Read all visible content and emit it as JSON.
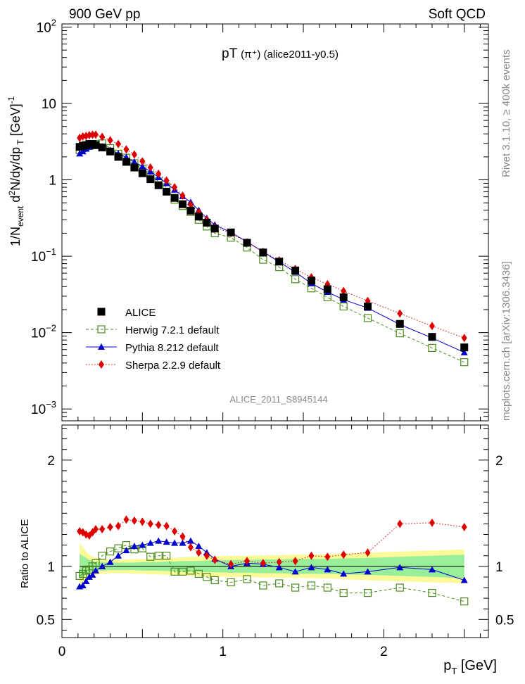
{
  "header": {
    "left": "900 GeV pp",
    "right": "Soft QCD"
  },
  "side": {
    "top": "Rivet 3.1.10, ≥ 400k events",
    "bottom": "mcplots.cern.ch [arXiv:1306.3436]"
  },
  "chart_data": [
    {
      "type": "scatter",
      "title_main": "pT",
      "title_sub": "(π⁺) (alice2011-y0.5)",
      "watermark": "ALICE_2011_S8945144",
      "ylabel": "1/N_event d²N/dy/dp_T [GeV]⁻¹",
      "yscale": "log",
      "ylim": [
        0.0007,
        110
      ],
      "xlim": [
        0,
        2.65
      ],
      "yticks": [
        {
          "v": 0.001,
          "b": "10",
          "e": "−3"
        },
        {
          "v": 0.01,
          "b": "10",
          "e": "−2"
        },
        {
          "v": 0.1,
          "b": "10",
          "e": "−1"
        },
        {
          "v": 1,
          "b": "1",
          "e": ""
        },
        {
          "v": 10,
          "b": "10",
          "e": ""
        },
        {
          "v": 100,
          "b": "10",
          "e": "2"
        }
      ],
      "x": [
        0.11,
        0.13,
        0.15,
        0.17,
        0.19,
        0.21,
        0.25,
        0.3,
        0.35,
        0.4,
        0.45,
        0.5,
        0.55,
        0.6,
        0.65,
        0.7,
        0.75,
        0.8,
        0.85,
        0.9,
        0.95,
        1.05,
        1.15,
        1.25,
        1.35,
        1.45,
        1.55,
        1.65,
        1.75,
        1.9,
        2.1,
        2.3,
        2.5
      ],
      "series": [
        {
          "name": "ALICE",
          "color": "#000000",
          "marker": "square",
          "values": [
            2.7,
            2.8,
            2.85,
            2.95,
            2.95,
            2.85,
            2.65,
            2.35,
            2.0,
            1.72,
            1.45,
            1.22,
            1.02,
            0.85,
            0.7,
            0.58,
            0.48,
            0.395,
            0.33,
            0.275,
            0.23,
            0.205,
            0.15,
            0.112,
            0.085,
            0.065,
            0.048,
            0.037,
            0.029,
            0.022,
            0.013,
            0.0088,
            0.0064
          ]
        },
        {
          "name": "Herwig 7.2.1 default",
          "color": "#4d8a1e",
          "marker": "open-square",
          "dash": "4,3",
          "values": [
            2.45,
            2.6,
            2.75,
            2.8,
            2.85,
            2.95,
            3.0,
            2.6,
            2.2,
            1.95,
            1.65,
            1.4,
            1.15,
            0.95,
            0.8,
            0.55,
            0.455,
            0.38,
            0.3,
            0.245,
            0.2,
            0.175,
            0.13,
            0.09,
            0.072,
            0.05,
            0.038,
            0.029,
            0.022,
            0.0155,
            0.0098,
            0.0063,
            0.0041
          ]
        },
        {
          "name": "Pythia 8.212 default",
          "color": "#0000cc",
          "marker": "triangle",
          "values": [
            2.2,
            2.35,
            2.55,
            2.7,
            2.85,
            2.8,
            2.75,
            2.45,
            2.2,
            1.98,
            1.72,
            1.5,
            1.28,
            1.08,
            0.9,
            0.74,
            0.61,
            0.51,
            0.4,
            0.315,
            0.258,
            0.205,
            0.155,
            0.114,
            0.084,
            0.062,
            0.044,
            0.034,
            0.027,
            0.021,
            0.0128,
            0.0085,
            0.0055
          ]
        },
        {
          "name": "Sherpa 2.2.9 default",
          "color": "#dd0000",
          "marker": "diamond",
          "dash": "1.5,2.5",
          "values": [
            3.55,
            3.7,
            3.75,
            3.85,
            3.9,
            3.9,
            3.65,
            3.3,
            2.95,
            2.5,
            2.15,
            1.75,
            1.45,
            1.2,
            0.98,
            0.8,
            0.62,
            0.47,
            0.375,
            0.3,
            0.24,
            0.2,
            0.152,
            0.114,
            0.088,
            0.068,
            0.053,
            0.043,
            0.035,
            0.026,
            0.0178,
            0.0122,
            0.0085
          ]
        }
      ],
      "legend_position": "lower-left"
    },
    {
      "type": "scatter",
      "ylabel": "Ratio to ALICE",
      "xlabel_main": "p",
      "xlabel_sub": "T",
      "xlabel_unit": " [GeV]",
      "ylim": [
        0.33,
        2.33
      ],
      "xlim": [
        0,
        2.65
      ],
      "yticks": [
        0.5,
        1,
        2
      ],
      "xticks": [
        0,
        1,
        2
      ],
      "band_inner": [
        0.12,
        0.1,
        0.08,
        0.06,
        0.05,
        0.04,
        0.04,
        0.035,
        0.035,
        0.035,
        0.035,
        0.04,
        0.04,
        0.04,
        0.045,
        0.045,
        0.05,
        0.05,
        0.05,
        0.055,
        0.055,
        0.06,
        0.06,
        0.065,
        0.065,
        0.07,
        0.07,
        0.07,
        0.075,
        0.08,
        0.09,
        0.1,
        0.11
      ],
      "band_outer": [
        0.22,
        0.18,
        0.14,
        0.11,
        0.09,
        0.08,
        0.07,
        0.065,
        0.065,
        0.065,
        0.07,
        0.07,
        0.075,
        0.075,
        0.08,
        0.08,
        0.085,
        0.09,
        0.09,
        0.095,
        0.095,
        0.1,
        0.1,
        0.105,
        0.105,
        0.11,
        0.11,
        0.115,
        0.12,
        0.13,
        0.14,
        0.15,
        0.16
      ],
      "series": [
        {
          "name": "Herwig 7.2.1 default",
          "color": "#4d8a1e",
          "marker": "open-square",
          "dash": "4,3",
          "values": [
            0.91,
            0.93,
            0.96,
            0.97,
            1.0,
            1.03,
            1.1,
            1.14,
            1.17,
            1.2,
            1.16,
            1.17,
            1.09,
            1.1,
            1.1,
            0.95,
            0.95,
            0.96,
            0.93,
            0.9,
            0.87,
            0.85,
            0.88,
            0.82,
            0.84,
            0.8,
            0.82,
            0.8,
            0.75,
            0.75,
            0.8,
            0.75,
            0.67
          ]
        },
        {
          "name": "Pythia 8.212 default",
          "color": "#0000cc",
          "marker": "triangle",
          "values": [
            0.81,
            0.82,
            0.86,
            0.9,
            0.92,
            0.96,
            1.0,
            1.04,
            1.1,
            1.15,
            1.19,
            1.2,
            1.22,
            1.24,
            1.23,
            1.22,
            1.22,
            1.24,
            1.19,
            1.13,
            1.07,
            1.0,
            1.03,
            1.02,
            0.99,
            0.95,
            0.99,
            0.97,
            0.93,
            0.95,
            0.99,
            0.97,
            0.87
          ]
        },
        {
          "name": "Sherpa 2.2.9 default",
          "color": "#dd0000",
          "marker": "diamond",
          "dash": "1.5,2.5",
          "values": [
            1.33,
            1.32,
            1.3,
            1.29,
            1.32,
            1.35,
            1.35,
            1.37,
            1.38,
            1.44,
            1.43,
            1.42,
            1.4,
            1.39,
            1.38,
            1.33,
            1.28,
            1.18,
            1.13,
            1.1,
            1.06,
            1.02,
            1.05,
            1.03,
            1.04,
            1.05,
            1.1,
            1.09,
            1.11,
            1.13,
            1.4,
            1.41,
            1.37
          ]
        }
      ]
    }
  ]
}
